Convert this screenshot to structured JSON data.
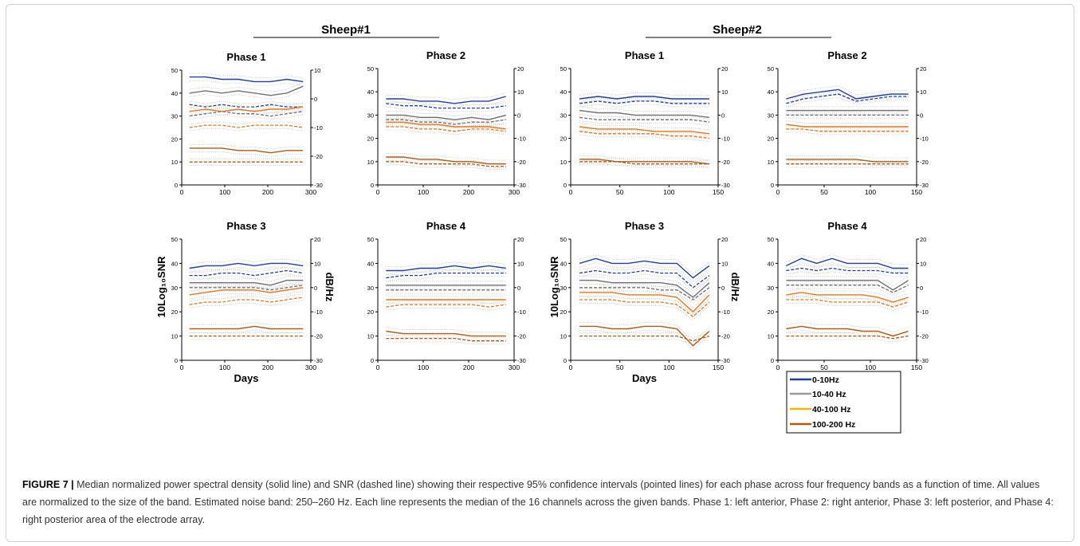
{
  "figure": {
    "groups": [
      {
        "title": "Sheep#1"
      },
      {
        "title": "Sheep#2"
      }
    ],
    "y_left_label": "10Log₁₀SNR",
    "y_right_label": "dB/Hz",
    "x_label": "Days",
    "legend": [
      {
        "label": "0-10Hz",
        "color": "#1f3fa8"
      },
      {
        "label": "10-40 Hz",
        "color": "#9a9a9a"
      },
      {
        "label": "40-100 Hz",
        "color": "#f2b400"
      },
      {
        "label": "100-200 Hz",
        "color": "#b35a12"
      }
    ],
    "line_styles": {
      "psd": "solid",
      "snr": "dashed",
      "ci95": "dotted"
    }
  },
  "caption": {
    "label": "FIGURE 7 |",
    "text": "Median normalized power spectral density (solid line) and SNR (dashed line) showing their respective 95% confidence intervals (pointed lines) for each phase across four frequency bands as a function of time. All values are normalized to the size of the band. Estimated noise band: 250–260 Hz. Each line represents the median of the 16 channels across the given bands. Phase 1: left anterior, Phase 2: right anterior, Phase 3: left posterior, and Phase 4: right posterior area of the electrode array."
  },
  "chart_data": [
    {
      "type": "line",
      "group": "Sheep#1",
      "title": "Phase 1",
      "xlim": [
        0,
        300
      ],
      "xticks": [
        0,
        100,
        200,
        300
      ],
      "ylim_left": [
        0,
        50
      ],
      "yticks_left": [
        0,
        10,
        20,
        30,
        40,
        50
      ],
      "ylim_right": [
        -30,
        10
      ],
      "yticks_right": [
        -30,
        -20,
        -10,
        0,
        10
      ],
      "x_axis_label": "",
      "series": [
        {
          "band": "0-10Hz",
          "color": "#1f3fa8",
          "psd": [
            47,
            47,
            46,
            46,
            45,
            45,
            46,
            45
          ],
          "snr": [
            35,
            34,
            35,
            34,
            34,
            35,
            34,
            34
          ]
        },
        {
          "band": "10-40 Hz",
          "color": "#707070",
          "psd": [
            40,
            41,
            40,
            41,
            40,
            39,
            40,
            43
          ],
          "snr": [
            30,
            31,
            32,
            31,
            31,
            30,
            31,
            32
          ]
        },
        {
          "band": "40-100 Hz",
          "color": "#e8771a",
          "psd": [
            32,
            33,
            32,
            33,
            32,
            33,
            33,
            34
          ],
          "snr": [
            25,
            26,
            26,
            25,
            26,
            26,
            26,
            25
          ]
        },
        {
          "band": "100-200 Hz",
          "color": "#b35a12",
          "psd": [
            16,
            16,
            16,
            15,
            15,
            14,
            15,
            15
          ],
          "snr": [
            10,
            10,
            10,
            10,
            10,
            10,
            10,
            10
          ]
        }
      ]
    },
    {
      "type": "line",
      "group": "Sheep#1",
      "title": "Phase 2",
      "xlim": [
        0,
        300
      ],
      "xticks": [
        0,
        100,
        200,
        300
      ],
      "ylim_left": [
        0,
        50
      ],
      "yticks_left": [
        0,
        10,
        20,
        30,
        40,
        50
      ],
      "ylim_right": [
        -30,
        20
      ],
      "yticks_right": [
        -30,
        -20,
        -10,
        0,
        10,
        20
      ],
      "x_axis_label": "",
      "series": [
        {
          "band": "0-10Hz",
          "color": "#1f3fa8",
          "psd": [
            37,
            37,
            36,
            36,
            35,
            36,
            36,
            38
          ],
          "snr": [
            35,
            34,
            34,
            33,
            33,
            33,
            33,
            34
          ]
        },
        {
          "band": "10-40 Hz",
          "color": "#707070",
          "psd": [
            30,
            30,
            29,
            29,
            28,
            29,
            28,
            30
          ],
          "snr": [
            28,
            28,
            27,
            27,
            26,
            27,
            27,
            28
          ]
        },
        {
          "band": "40-100 Hz",
          "color": "#e8771a",
          "psd": [
            27,
            27,
            26,
            26,
            25,
            25,
            25,
            24
          ],
          "snr": [
            25,
            25,
            24,
            24,
            23,
            24,
            24,
            23
          ]
        },
        {
          "band": "100-200 Hz",
          "color": "#b35a12",
          "psd": [
            12,
            12,
            11,
            11,
            10,
            10,
            9,
            9
          ],
          "snr": [
            10,
            10,
            9,
            9,
            9,
            9,
            8,
            8
          ]
        }
      ]
    },
    {
      "type": "line",
      "group": "Sheep#2",
      "title": "Phase 1",
      "xlim": [
        0,
        150
      ],
      "xticks": [
        0,
        50,
        100,
        150
      ],
      "ylim_left": [
        0,
        50
      ],
      "yticks_left": [
        0,
        10,
        20,
        30,
        40,
        50
      ],
      "ylim_right": [
        -30,
        20
      ],
      "yticks_right": [
        -30,
        -20,
        -10,
        0,
        10,
        20
      ],
      "x_axis_label": "",
      "series": [
        {
          "band": "0-10Hz",
          "color": "#1f3fa8",
          "psd": [
            37,
            38,
            37,
            38,
            38,
            37,
            37,
            37
          ],
          "snr": [
            35,
            36,
            35,
            36,
            36,
            35,
            35,
            35
          ]
        },
        {
          "band": "10-40 Hz",
          "color": "#707070",
          "psd": [
            32,
            31,
            31,
            30,
            30,
            30,
            30,
            29
          ],
          "snr": [
            29,
            28,
            28,
            28,
            28,
            28,
            28,
            27
          ]
        },
        {
          "band": "40-100 Hz",
          "color": "#e8771a",
          "psd": [
            25,
            24,
            24,
            24,
            23,
            23,
            23,
            22
          ],
          "snr": [
            23,
            22,
            22,
            22,
            22,
            21,
            21,
            20
          ]
        },
        {
          "band": "100-200 Hz",
          "color": "#b35a12",
          "psd": [
            11,
            11,
            10,
            10,
            10,
            10,
            10,
            9
          ],
          "snr": [
            10,
            10,
            10,
            9,
            9,
            9,
            9,
            9
          ]
        }
      ]
    },
    {
      "type": "line",
      "group": "Sheep#2",
      "title": "Phase 2",
      "xlim": [
        0,
        150
      ],
      "xticks": [
        0,
        50,
        100,
        150
      ],
      "ylim_left": [
        0,
        50
      ],
      "yticks_left": [
        0,
        10,
        20,
        30,
        40,
        50
      ],
      "ylim_right": [
        -30,
        20
      ],
      "yticks_right": [
        -30,
        -20,
        -10,
        0,
        10,
        20
      ],
      "x_axis_label": "",
      "series": [
        {
          "band": "0-10Hz",
          "color": "#1f3fa8",
          "psd": [
            37,
            39,
            40,
            41,
            37,
            38,
            39,
            39
          ],
          "snr": [
            35,
            37,
            38,
            39,
            36,
            37,
            38,
            38
          ]
        },
        {
          "band": "10-40 Hz",
          "color": "#707070",
          "psd": [
            32,
            32,
            32,
            32,
            32,
            32,
            32,
            32
          ],
          "snr": [
            30,
            30,
            30,
            30,
            30,
            30,
            30,
            30
          ]
        },
        {
          "band": "40-100 Hz",
          "color": "#e8771a",
          "psd": [
            26,
            25,
            25,
            25,
            25,
            25,
            25,
            25
          ],
          "snr": [
            24,
            24,
            23,
            23,
            23,
            23,
            23,
            23
          ]
        },
        {
          "band": "100-200 Hz",
          "color": "#b35a12",
          "psd": [
            11,
            11,
            11,
            11,
            11,
            10,
            10,
            10
          ],
          "snr": [
            9,
            9,
            9,
            9,
            9,
            9,
            9,
            9
          ]
        }
      ]
    },
    {
      "type": "line",
      "group": "Sheep#1",
      "title": "Phase 3",
      "xlim": [
        0,
        300
      ],
      "xticks": [
        0,
        100,
        200,
        300
      ],
      "ylim_left": [
        0,
        50
      ],
      "yticks_left": [
        0,
        10,
        20,
        30,
        40,
        50
      ],
      "ylim_right": [
        -30,
        20
      ],
      "yticks_right": [
        -30,
        -20,
        -10,
        0,
        10,
        20
      ],
      "x_axis_label": "Days",
      "series": [
        {
          "band": "0-10Hz",
          "color": "#1f3fa8",
          "psd": [
            38,
            39,
            39,
            40,
            39,
            40,
            40,
            39
          ],
          "snr": [
            35,
            35,
            36,
            36,
            35,
            36,
            37,
            36
          ]
        },
        {
          "band": "10-40 Hz",
          "color": "#707070",
          "psd": [
            32,
            32,
            32,
            32,
            32,
            31,
            33,
            33
          ],
          "snr": [
            30,
            30,
            30,
            30,
            30,
            29,
            30,
            31
          ]
        },
        {
          "band": "40-100 Hz",
          "color": "#e8771a",
          "psd": [
            27,
            28,
            29,
            29,
            29,
            28,
            29,
            30
          ],
          "snr": [
            23,
            24,
            24,
            25,
            25,
            24,
            25,
            26
          ]
        },
        {
          "band": "100-200 Hz",
          "color": "#b35a12",
          "psd": [
            13,
            13,
            13,
            13,
            14,
            13,
            13,
            13
          ],
          "snr": [
            10,
            10,
            10,
            10,
            10,
            10,
            10,
            10
          ]
        }
      ]
    },
    {
      "type": "line",
      "group": "Sheep#1",
      "title": "Phase 4",
      "xlim": [
        0,
        300
      ],
      "xticks": [
        0,
        100,
        200,
        300
      ],
      "ylim_left": [
        0,
        50
      ],
      "yticks_left": [
        0,
        10,
        20,
        30,
        40,
        50
      ],
      "ylim_right": [
        -30,
        20
      ],
      "yticks_right": [
        -30,
        -20,
        -10,
        0,
        10,
        20
      ],
      "x_axis_label": "",
      "series": [
        {
          "band": "0-10Hz",
          "color": "#1f3fa8",
          "psd": [
            37,
            37,
            38,
            38,
            39,
            38,
            39,
            38
          ],
          "snr": [
            34,
            35,
            35,
            36,
            36,
            36,
            36,
            36
          ]
        },
        {
          "band": "10-40 Hz",
          "color": "#707070",
          "psd": [
            31,
            31,
            31,
            31,
            31,
            31,
            31,
            31
          ],
          "snr": [
            29,
            29,
            29,
            29,
            29,
            29,
            29,
            29
          ]
        },
        {
          "band": "40-100 Hz",
          "color": "#e8771a",
          "psd": [
            25,
            25,
            25,
            25,
            25,
            25,
            25,
            25
          ],
          "snr": [
            22,
            23,
            23,
            23,
            23,
            23,
            22,
            23
          ]
        },
        {
          "band": "100-200 Hz",
          "color": "#b35a12",
          "psd": [
            12,
            11,
            11,
            11,
            11,
            10,
            10,
            10
          ],
          "snr": [
            9,
            9,
            9,
            9,
            9,
            8,
            8,
            8
          ]
        }
      ]
    },
    {
      "type": "line",
      "group": "Sheep#2",
      "title": "Phase 3",
      "xlim": [
        0,
        150
      ],
      "xticks": [
        0,
        50,
        100,
        150
      ],
      "ylim_left": [
        0,
        50
      ],
      "yticks_left": [
        0,
        10,
        20,
        30,
        40,
        50
      ],
      "ylim_right": [
        -30,
        20
      ],
      "yticks_right": [
        -30,
        -20,
        -10,
        0,
        10,
        20
      ],
      "x_axis_label": "Days",
      "series": [
        {
          "band": "0-10Hz",
          "color": "#1f3fa8",
          "psd": [
            40,
            42,
            40,
            40,
            41,
            40,
            40,
            34,
            39
          ],
          "snr": [
            36,
            37,
            36,
            36,
            37,
            36,
            36,
            30,
            35
          ]
        },
        {
          "band": "10-40 Hz",
          "color": "#707070",
          "psd": [
            33,
            33,
            32,
            32,
            32,
            32,
            31,
            26,
            32
          ],
          "snr": [
            30,
            30,
            30,
            30,
            30,
            29,
            29,
            25,
            30
          ]
        },
        {
          "band": "40-100 Hz",
          "color": "#e8771a",
          "psd": [
            28,
            28,
            28,
            27,
            27,
            27,
            26,
            20,
            27
          ],
          "snr": [
            25,
            25,
            25,
            24,
            24,
            24,
            23,
            18,
            24
          ]
        },
        {
          "band": "100-200 Hz",
          "color": "#b35a12",
          "psd": [
            14,
            14,
            13,
            13,
            14,
            14,
            13,
            6,
            12
          ],
          "snr": [
            10,
            10,
            10,
            10,
            10,
            10,
            10,
            8,
            10
          ]
        }
      ]
    },
    {
      "type": "line",
      "group": "Sheep#2",
      "title": "Phase 4",
      "xlim": [
        0,
        150
      ],
      "xticks": [
        0,
        50,
        100,
        150
      ],
      "ylim_left": [
        0,
        50
      ],
      "yticks_left": [
        0,
        10,
        20,
        30,
        40,
        50
      ],
      "ylim_right": [
        -30,
        20
      ],
      "yticks_right": [
        -30,
        -20,
        -10,
        0,
        10,
        20
      ],
      "x_axis_label": "",
      "series": [
        {
          "band": "0-10Hz",
          "color": "#1f3fa8",
          "psd": [
            39,
            42,
            40,
            42,
            40,
            40,
            40,
            38,
            38
          ],
          "snr": [
            37,
            38,
            37,
            38,
            37,
            37,
            37,
            36,
            36
          ]
        },
        {
          "band": "10-40 Hz",
          "color": "#707070",
          "psd": [
            33,
            33,
            33,
            33,
            33,
            33,
            33,
            29,
            33
          ],
          "snr": [
            31,
            31,
            31,
            31,
            31,
            31,
            31,
            28,
            31
          ]
        },
        {
          "band": "40-100 Hz",
          "color": "#e8771a",
          "psd": [
            27,
            28,
            27,
            27,
            27,
            27,
            26,
            24,
            26
          ],
          "snr": [
            25,
            25,
            25,
            24,
            24,
            24,
            24,
            22,
            24
          ]
        },
        {
          "band": "100-200 Hz",
          "color": "#b35a12",
          "psd": [
            13,
            14,
            13,
            13,
            13,
            12,
            12,
            10,
            12
          ],
          "snr": [
            10,
            10,
            10,
            10,
            10,
            10,
            10,
            9,
            10
          ]
        }
      ]
    }
  ]
}
